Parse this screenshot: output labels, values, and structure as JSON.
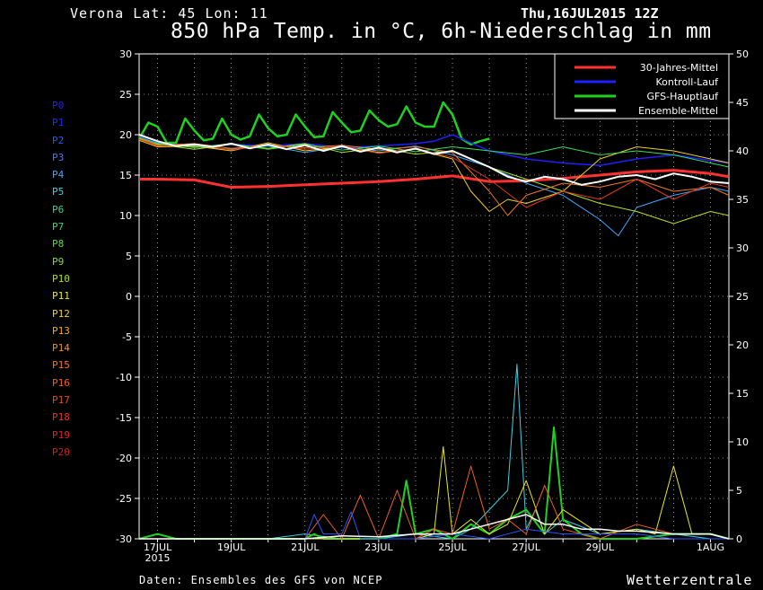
{
  "header": {
    "location": "Verona   Lat: 45 Lon: 11",
    "date": "Thu,16JUL2015 12Z",
    "title": "850 hPa Temp. in °C, 6h-Niederschlag in mm"
  },
  "footer": {
    "source": "Daten: Ensembles des GFS von NCEP",
    "brand": "Wetterzentrale"
  },
  "members": [
    {
      "label": "P0",
      "color": "#2020ff"
    },
    {
      "label": "P1",
      "color": "#1c2cff"
    },
    {
      "label": "P2",
      "color": "#2a55ff"
    },
    {
      "label": "P3",
      "color": "#3a80ff"
    },
    {
      "label": "P4",
      "color": "#40a8ff"
    },
    {
      "label": "P5",
      "color": "#40d0e0"
    },
    {
      "label": "P6",
      "color": "#30d890"
    },
    {
      "label": "P7",
      "color": "#30e060"
    },
    {
      "label": "P8",
      "color": "#50e040"
    },
    {
      "label": "P9",
      "color": "#80e030"
    },
    {
      "label": "P10",
      "color": "#b0e020"
    },
    {
      "label": "P11",
      "color": "#e8e820"
    },
    {
      "label": "P12",
      "color": "#f0d020"
    },
    {
      "label": "P13",
      "color": "#f0b020"
    },
    {
      "label": "P14",
      "color": "#f09020"
    },
    {
      "label": "P15",
      "color": "#f07820"
    },
    {
      "label": "P16",
      "color": "#f06020"
    },
    {
      "label": "P17",
      "color": "#e84820"
    },
    {
      "label": "P18",
      "color": "#e03820"
    },
    {
      "label": "P19",
      "color": "#d82820"
    },
    {
      "label": "P20",
      "color": "#c82020"
    }
  ],
  "chart_data": {
    "type": "line",
    "x_unit": "days after 16JUL2015 12Z",
    "x_range": [
      0.5,
      16.5
    ],
    "grid": true,
    "legend_position": "top-right",
    "y_left": {
      "range": [
        -30,
        30
      ],
      "ticks": [
        "30",
        "25",
        "20",
        "15",
        "10",
        "5",
        "0",
        "-5",
        "-10",
        "-15",
        "-20",
        "-25",
        "-30"
      ]
    },
    "y_right": {
      "range": [
        0,
        50
      ],
      "ticks": [
        "50",
        "45",
        "40",
        "35",
        "30",
        "25",
        "20",
        "15",
        "10",
        "5",
        "0"
      ]
    },
    "x_ticks": [
      {
        "x": 1,
        "label": "17JUL",
        "sub": "2015"
      },
      {
        "x": 3,
        "label": "19JUL",
        "sub": ""
      },
      {
        "x": 5,
        "label": "21JUL",
        "sub": ""
      },
      {
        "x": 7,
        "label": "23JUL",
        "sub": ""
      },
      {
        "x": 9,
        "label": "25JUL",
        "sub": ""
      },
      {
        "x": 11,
        "label": "27JUL",
        "sub": ""
      },
      {
        "x": 13,
        "label": "29JUL",
        "sub": ""
      },
      {
        "x": 16,
        "label": "1AUG",
        "sub": ""
      }
    ],
    "legend": [
      {
        "name": "30-Jahres-Mittel",
        "color": "#ff3030"
      },
      {
        "name": "Kontroll-Lauf",
        "color": "#2020ff"
      },
      {
        "name": "GFS-Hauptlauf",
        "color": "#20d020"
      },
      {
        "name": "Ensemble-Mittel",
        "color": "#ffffff"
      }
    ],
    "series": [
      {
        "name": "30-Jahres-Mittel",
        "axis": "left",
        "color": "#ff3030",
        "width": 3,
        "x": [
          0.5,
          1,
          2,
          3,
          4,
          5,
          6,
          7,
          8,
          9,
          10,
          11,
          12,
          13,
          14,
          15,
          16,
          16.5
        ],
        "y": [
          14.5,
          14.5,
          14.4,
          13.5,
          13.6,
          13.8,
          14.0,
          14.2,
          14.5,
          14.9,
          14.2,
          14.3,
          14.6,
          15.0,
          15.4,
          15.6,
          15.2,
          14.8
        ]
      },
      {
        "name": "GFS-Hauptlauf",
        "axis": "left",
        "color": "#20d020",
        "width": 2.5,
        "x": [
          0.5,
          0.75,
          1,
          1.25,
          1.5,
          1.75,
          2,
          2.25,
          2.5,
          2.75,
          3,
          3.25,
          3.5,
          3.75,
          4,
          4.25,
          4.5,
          4.75,
          5,
          5.25,
          5.5,
          5.75,
          6,
          6.25,
          6.5,
          6.75,
          7,
          7.25,
          7.5,
          7.75,
          8,
          8.25,
          8.5,
          8.75,
          9,
          9.25,
          9.5,
          9.75,
          10
        ],
        "y": [
          19.5,
          21.5,
          21.0,
          19.0,
          19.0,
          22.0,
          20.5,
          19.3,
          19.5,
          22.0,
          20.0,
          19.4,
          19.8,
          22.5,
          20.8,
          19.8,
          20.0,
          22.5,
          21.0,
          19.7,
          19.8,
          22.8,
          21.5,
          20.3,
          20.5,
          23.0,
          21.8,
          21.0,
          21.3,
          23.5,
          21.5,
          21.0,
          21.0,
          24.0,
          22.5,
          19.5,
          18.8,
          19.2,
          19.5
        ]
      },
      {
        "name": "Kontroll-Lauf",
        "axis": "left",
        "color": "#2020ff",
        "width": 1.5,
        "x": [
          0.5,
          1,
          2,
          3,
          4,
          5,
          6,
          7,
          8,
          8.5,
          9,
          9.5,
          10,
          11,
          12,
          13,
          14,
          15,
          16,
          16.5
        ],
        "y": [
          19.8,
          19.0,
          18.5,
          18.8,
          18.6,
          18.9,
          18.4,
          18.6,
          18.9,
          19.2,
          20.0,
          19.0,
          18.0,
          17.0,
          16.5,
          16.2,
          17.0,
          17.5,
          16.8,
          16.5
        ]
      },
      {
        "name": "P4",
        "axis": "left",
        "color": "#40a8ff",
        "width": 1,
        "x": [
          0.5,
          1,
          2,
          3,
          4,
          5,
          6,
          7,
          8,
          9,
          10,
          11,
          12,
          13,
          13.5,
          14,
          15,
          16,
          16.5
        ],
        "y": [
          19.5,
          19.0,
          18.5,
          18.2,
          18.6,
          17.8,
          18.5,
          18.0,
          18.6,
          17.5,
          16.0,
          14.0,
          12.5,
          9.5,
          7.5,
          11.0,
          12.5,
          13.5,
          13.0
        ]
      },
      {
        "name": "P10",
        "axis": "left",
        "color": "#b0e020",
        "width": 1,
        "x": [
          0.5,
          1,
          2,
          3,
          4,
          5,
          6,
          7,
          8,
          9,
          10,
          11,
          12,
          13,
          14,
          15,
          16,
          16.5
        ],
        "y": [
          19.5,
          18.8,
          18.2,
          18.8,
          18.3,
          18.9,
          17.8,
          18.4,
          17.6,
          18.0,
          16.0,
          14.5,
          13.0,
          11.5,
          10.5,
          9.0,
          10.5,
          10.0
        ]
      },
      {
        "name": "P12",
        "axis": "left",
        "color": "#f0d020",
        "width": 1,
        "x": [
          0.5,
          1,
          2,
          3,
          4,
          5,
          6,
          7,
          8,
          9,
          9.5,
          10,
          10.5,
          11,
          12,
          13,
          14,
          15,
          16,
          16.5
        ],
        "y": [
          19.3,
          18.5,
          18.6,
          18.0,
          19.0,
          18.0,
          18.5,
          17.8,
          18.2,
          17.0,
          13.0,
          10.5,
          12.0,
          11.5,
          13.0,
          17.0,
          18.5,
          18.0,
          17.0,
          16.5
        ]
      },
      {
        "name": "P15",
        "axis": "left",
        "color": "#f07820",
        "width": 1,
        "x": [
          0.5,
          1,
          2,
          3,
          4,
          5,
          6,
          7,
          8,
          9,
          10,
          10.5,
          11,
          12,
          13,
          14,
          15,
          16,
          16.5
        ],
        "y": [
          19.6,
          18.7,
          18.9,
          18.3,
          18.7,
          18.4,
          18.7,
          18.2,
          18.5,
          17.8,
          13.0,
          10.0,
          12.5,
          14.0,
          13.5,
          14.5,
          13.0,
          13.5,
          12.5
        ]
      },
      {
        "name": "P7",
        "axis": "left",
        "color": "#30e060",
        "width": 1,
        "x": [
          0.5,
          1,
          2,
          3,
          4,
          5,
          6,
          7,
          8,
          9,
          10,
          11,
          12,
          13,
          14,
          15,
          16,
          16.5
        ],
        "y": [
          19.7,
          18.9,
          18.4,
          18.9,
          18.2,
          18.8,
          18.1,
          18.6,
          17.9,
          18.5,
          18.0,
          17.5,
          18.5,
          17.5,
          18.0,
          17.5,
          16.5,
          16.0
        ]
      },
      {
        "name": "P18",
        "axis": "left",
        "color": "#e03820",
        "width": 1,
        "x": [
          0.5,
          1,
          2,
          3,
          4,
          5,
          6,
          7,
          8,
          9,
          10,
          11,
          12,
          13,
          14,
          15,
          16,
          16.5
        ],
        "y": [
          19.4,
          18.6,
          18.8,
          18.1,
          18.8,
          18.2,
          18.6,
          17.7,
          18.3,
          17.2,
          14.5,
          11.0,
          13.0,
          12.0,
          14.5,
          12.0,
          14.0,
          13.5
        ]
      },
      {
        "name": "Ensemble-Mittel",
        "axis": "left",
        "color": "#ffffff",
        "width": 2,
        "x": [
          0.5,
          1,
          1.5,
          2,
          2.5,
          3,
          3.5,
          4,
          4.5,
          5,
          5.5,
          6,
          6.5,
          7,
          7.5,
          8,
          8.5,
          9,
          9.5,
          10,
          10.5,
          11,
          11.5,
          12,
          12.5,
          13,
          13.5,
          14,
          14.5,
          15,
          15.5,
          16,
          16.5
        ],
        "y": [
          20.0,
          19.2,
          18.6,
          18.8,
          18.5,
          18.9,
          18.3,
          18.8,
          18.2,
          18.7,
          18.0,
          18.6,
          17.9,
          18.4,
          17.8,
          18.3,
          17.6,
          18.0,
          17.0,
          16.0,
          14.8,
          14.2,
          14.8,
          14.5,
          13.8,
          14.2,
          14.8,
          15.0,
          14.5,
          15.2,
          14.8,
          14.2,
          14.0
        ]
      },
      {
        "name": "precip-P5",
        "axis": "right",
        "color": "#40d0e0",
        "width": 1,
        "x": [
          0.5,
          1,
          2,
          3,
          4,
          5,
          6,
          7,
          8,
          9,
          9.5,
          10,
          10.5,
          10.75,
          11,
          11.25,
          11.5,
          12,
          13,
          14,
          15,
          16,
          16.5
        ],
        "y": [
          0,
          0,
          0,
          0,
          0,
          0.5,
          0,
          0,
          0.5,
          0,
          1.0,
          3.0,
          5.0,
          18.0,
          1.0,
          3.0,
          0.5,
          2.0,
          0.5,
          1.0,
          0.5,
          0,
          0
        ]
      },
      {
        "name": "precip-GFS",
        "axis": "right",
        "color": "#20d020",
        "width": 2,
        "x": [
          0.5,
          1,
          1.5,
          2,
          3,
          4,
          5,
          5.25,
          5.5,
          6,
          6.5,
          7,
          7.5,
          7.75,
          8,
          8.5,
          9,
          9.5,
          10,
          10.5,
          11,
          11.5,
          11.75,
          12,
          12.5,
          13,
          14,
          15,
          16,
          16.5
        ],
        "y": [
          0,
          0.5,
          0,
          0,
          0,
          0,
          0,
          0.5,
          0,
          0,
          0,
          0,
          0.5,
          6.0,
          0.5,
          1.0,
          0,
          1.5,
          0.5,
          2.0,
          3.0,
          0.5,
          11.5,
          2.0,
          0.5,
          0,
          0,
          0.5,
          0.5,
          0
        ]
      },
      {
        "name": "precip-P11",
        "axis": "right",
        "color": "#e8e820",
        "width": 1,
        "x": [
          0.5,
          1,
          5,
          6,
          7,
          8,
          8.5,
          8.75,
          9,
          9.5,
          10,
          10.5,
          11,
          11.5,
          12,
          13,
          14,
          14.5,
          15,
          15.5,
          16,
          16.5
        ],
        "y": [
          0,
          0,
          0,
          0,
          0,
          0,
          0.5,
          9.5,
          0.5,
          2.0,
          0.5,
          1.5,
          6.0,
          0.5,
          3.0,
          0.5,
          1.0,
          0.5,
          7.5,
          0.5,
          0.5,
          0
        ]
      },
      {
        "name": "precip-P16",
        "axis": "right",
        "color": "#f06020",
        "width": 1,
        "x": [
          0.5,
          1,
          5,
          5.5,
          6,
          6.5,
          7,
          7.5,
          8,
          8.5,
          9,
          9.5,
          10,
          10.5,
          11,
          11.5,
          12,
          12.5,
          13,
          14,
          15,
          16,
          16.5
        ],
        "y": [
          0,
          0,
          0,
          2.5,
          0,
          4.5,
          0,
          5.0,
          0,
          1.0,
          0.5,
          7.5,
          1.0,
          2.0,
          0.5,
          5.5,
          1.0,
          0.5,
          0,
          1.5,
          0.5,
          0.5,
          0
        ]
      },
      {
        "name": "precip-P2",
        "axis": "right",
        "color": "#2a55ff",
        "width": 1,
        "x": [
          0.5,
          1,
          5,
          5.25,
          5.5,
          6,
          6.25,
          6.5,
          7,
          8,
          9,
          10,
          11,
          12,
          13,
          14,
          15,
          16,
          16.5
        ],
        "y": [
          0,
          0,
          0,
          2.5,
          0.5,
          0.5,
          2.8,
          0,
          0,
          0,
          0.5,
          0,
          1.0,
          0.5,
          0.5,
          0.5,
          0,
          0,
          0
        ]
      },
      {
        "name": "precip-mean",
        "axis": "right",
        "color": "#ffffff",
        "width": 1.5,
        "x": [
          0.5,
          1,
          5,
          6,
          7,
          8,
          9,
          9.5,
          10,
          10.5,
          11,
          11.5,
          12,
          12.5,
          13,
          13.5,
          14,
          15,
          16,
          16.5
        ],
        "y": [
          0,
          0,
          0,
          0.3,
          0.2,
          0.5,
          0.5,
          1.0,
          1.5,
          2.0,
          2.5,
          1.5,
          1.5,
          1.0,
          1.0,
          0.8,
          0.8,
          0.5,
          0.5,
          0
        ]
      }
    ]
  }
}
